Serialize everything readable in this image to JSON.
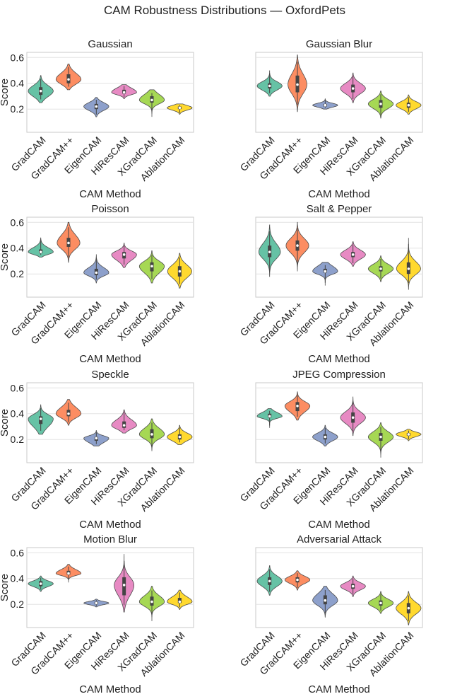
{
  "figure": {
    "title": "CAM Robustness Distributions — OxfordPets"
  },
  "palette": {
    "GradCAM": "#66c2a5",
    "GradCAM++": "#fc8d62",
    "EigenCAM": "#8da0cb",
    "HiResCAM": "#e78ac3",
    "XGradCAM": "#a6d854",
    "AblationCAM": "#ffd92f"
  },
  "chart_data": [
    {
      "type": "violin",
      "title": "Gaussian",
      "xlabel": "CAM Method",
      "ylabel": "Score",
      "categories": [
        "GradCAM",
        "GradCAM++",
        "EigenCAM",
        "HiResCAM",
        "XGradCAM",
        "AblationCAM"
      ],
      "yticks": [
        0.2,
        0.4,
        0.6
      ],
      "ylim": [
        0.02,
        0.64
      ],
      "grid": true,
      "violins": [
        {
          "median": 0.34,
          "q1": 0.31,
          "q3": 0.37,
          "min": 0.25,
          "max": 0.46,
          "spread": 0.042
        },
        {
          "median": 0.43,
          "q1": 0.4,
          "q3": 0.47,
          "min": 0.35,
          "max": 0.55,
          "spread": 0.042
        },
        {
          "median": 0.22,
          "q1": 0.2,
          "q3": 0.24,
          "min": 0.14,
          "max": 0.29,
          "spread": 0.03
        },
        {
          "median": 0.33,
          "q1": 0.32,
          "q3": 0.35,
          "min": 0.28,
          "max": 0.39,
          "spread": 0.024
        },
        {
          "median": 0.27,
          "q1": 0.25,
          "q3": 0.3,
          "min": 0.14,
          "max": 0.35,
          "spread": 0.035
        },
        {
          "median": 0.21,
          "q1": 0.2,
          "q3": 0.22,
          "min": 0.16,
          "max": 0.24,
          "spread": 0.018
        }
      ]
    },
    {
      "type": "violin",
      "title": "Gaussian Blur",
      "xlabel": "CAM Method",
      "ylabel": "",
      "categories": [
        "GradCAM",
        "GradCAM++",
        "EigenCAM",
        "HiResCAM",
        "XGradCAM",
        "AblationCAM"
      ],
      "yticks": [
        0.2,
        0.4,
        0.6
      ],
      "ylim": [
        0.02,
        0.64
      ],
      "grid": true,
      "violins": [
        {
          "median": 0.38,
          "q1": 0.36,
          "q3": 0.4,
          "min": 0.3,
          "max": 0.5,
          "spread": 0.032
        },
        {
          "median": 0.39,
          "q1": 0.33,
          "q3": 0.46,
          "min": 0.18,
          "max": 0.62,
          "spread": 0.075
        },
        {
          "median": 0.23,
          "q1": 0.22,
          "q3": 0.24,
          "min": 0.2,
          "max": 0.28,
          "spread": 0.015
        },
        {
          "median": 0.36,
          "q1": 0.33,
          "q3": 0.39,
          "min": 0.25,
          "max": 0.48,
          "spread": 0.04
        },
        {
          "median": 0.24,
          "q1": 0.21,
          "q3": 0.27,
          "min": 0.13,
          "max": 0.34,
          "spread": 0.035
        },
        {
          "median": 0.23,
          "q1": 0.21,
          "q3": 0.25,
          "min": 0.16,
          "max": 0.31,
          "spread": 0.028
        }
      ]
    },
    {
      "type": "violin",
      "title": "Poisson",
      "xlabel": "CAM Method",
      "ylabel": "Score",
      "categories": [
        "GradCAM",
        "GradCAM++",
        "EigenCAM",
        "HiResCAM",
        "XGradCAM",
        "AblationCAM"
      ],
      "yticks": [
        0.2,
        0.4,
        0.6
      ],
      "ylim": [
        0.02,
        0.64
      ],
      "grid": true,
      "violins": [
        {
          "median": 0.37,
          "q1": 0.36,
          "q3": 0.39,
          "min": 0.33,
          "max": 0.48,
          "spread": 0.025
        },
        {
          "median": 0.44,
          "q1": 0.41,
          "q3": 0.48,
          "min": 0.29,
          "max": 0.6,
          "spread": 0.055
        },
        {
          "median": 0.21,
          "q1": 0.19,
          "q3": 0.24,
          "min": 0.13,
          "max": 0.35,
          "spread": 0.032
        },
        {
          "median": 0.35,
          "q1": 0.32,
          "q3": 0.37,
          "min": 0.25,
          "max": 0.44,
          "spread": 0.035
        },
        {
          "median": 0.26,
          "q1": 0.22,
          "q3": 0.29,
          "min": 0.13,
          "max": 0.38,
          "spread": 0.045
        },
        {
          "median": 0.22,
          "q1": 0.18,
          "q3": 0.26,
          "min": 0.09,
          "max": 0.36,
          "spread": 0.05
        }
      ]
    },
    {
      "type": "violin",
      "title": "Salt & Pepper",
      "xlabel": "CAM Method",
      "ylabel": "",
      "categories": [
        "GradCAM",
        "GradCAM++",
        "EigenCAM",
        "HiResCAM",
        "XGradCAM",
        "AblationCAM"
      ],
      "yticks": [
        0.2,
        0.4,
        0.6
      ],
      "ylim": [
        0.02,
        0.64
      ],
      "grid": true,
      "violins": [
        {
          "median": 0.37,
          "q1": 0.33,
          "q3": 0.42,
          "min": 0.18,
          "max": 0.58,
          "spread": 0.06
        },
        {
          "median": 0.42,
          "q1": 0.38,
          "q3": 0.46,
          "min": 0.22,
          "max": 0.6,
          "spread": 0.055
        },
        {
          "median": 0.22,
          "q1": 0.21,
          "q3": 0.24,
          "min": 0.11,
          "max": 0.29,
          "spread": 0.03
        },
        {
          "median": 0.35,
          "q1": 0.33,
          "q3": 0.37,
          "min": 0.26,
          "max": 0.45,
          "spread": 0.035
        },
        {
          "median": 0.24,
          "q1": 0.22,
          "q3": 0.26,
          "min": 0.14,
          "max": 0.34,
          "spread": 0.035
        },
        {
          "median": 0.24,
          "q1": 0.2,
          "q3": 0.29,
          "min": 0.08,
          "max": 0.48,
          "spread": 0.05
        }
      ]
    },
    {
      "type": "violin",
      "title": "Speckle",
      "xlabel": "CAM Method",
      "ylabel": "Score",
      "categories": [
        "GradCAM",
        "GradCAM++",
        "EigenCAM",
        "HiResCAM",
        "XGradCAM",
        "AblationCAM"
      ],
      "yticks": [
        0.2,
        0.4,
        0.6
      ],
      "ylim": [
        0.02,
        0.64
      ],
      "grid": true,
      "violins": [
        {
          "median": 0.36,
          "q1": 0.32,
          "q3": 0.38,
          "min": 0.24,
          "max": 0.47,
          "spread": 0.045
        },
        {
          "median": 0.4,
          "q1": 0.38,
          "q3": 0.43,
          "min": 0.31,
          "max": 0.51,
          "spread": 0.04
        },
        {
          "median": 0.21,
          "q1": 0.19,
          "q3": 0.22,
          "min": 0.15,
          "max": 0.27,
          "spread": 0.025
        },
        {
          "median": 0.31,
          "q1": 0.29,
          "q3": 0.34,
          "min": 0.25,
          "max": 0.43,
          "spread": 0.035
        },
        {
          "median": 0.24,
          "q1": 0.21,
          "q3": 0.28,
          "min": 0.11,
          "max": 0.36,
          "spread": 0.04
        },
        {
          "median": 0.22,
          "q1": 0.2,
          "q3": 0.24,
          "min": 0.16,
          "max": 0.31,
          "spread": 0.03
        }
      ]
    },
    {
      "type": "violin",
      "title": "JPEG Compression",
      "xlabel": "CAM Method",
      "ylabel": "",
      "categories": [
        "GradCAM",
        "GradCAM++",
        "EigenCAM",
        "HiResCAM",
        "XGradCAM",
        "AblationCAM"
      ],
      "yticks": [
        0.2,
        0.4,
        0.6
      ],
      "ylim": [
        0.02,
        0.64
      ],
      "grid": true,
      "violins": [
        {
          "median": 0.38,
          "q1": 0.37,
          "q3": 0.4,
          "min": 0.29,
          "max": 0.44,
          "spread": 0.022
        },
        {
          "median": 0.46,
          "q1": 0.42,
          "q3": 0.49,
          "min": 0.35,
          "max": 0.57,
          "spread": 0.04
        },
        {
          "median": 0.22,
          "q1": 0.2,
          "q3": 0.24,
          "min": 0.15,
          "max": 0.31,
          "spread": 0.03
        },
        {
          "median": 0.37,
          "q1": 0.33,
          "q3": 0.41,
          "min": 0.23,
          "max": 0.53,
          "spread": 0.045
        },
        {
          "median": 0.22,
          "q1": 0.19,
          "q3": 0.25,
          "min": 0.06,
          "max": 0.33,
          "spread": 0.04
        },
        {
          "median": 0.24,
          "q1": 0.23,
          "q3": 0.25,
          "min": 0.19,
          "max": 0.28,
          "spread": 0.018
        }
      ]
    },
    {
      "type": "violin",
      "title": "Motion Blur",
      "xlabel": "CAM Method",
      "ylabel": "Score",
      "categories": [
        "GradCAM",
        "GradCAM++",
        "EigenCAM",
        "HiResCAM",
        "XGradCAM",
        "AblationCAM"
      ],
      "yticks": [
        0.2,
        0.4,
        0.6
      ],
      "ylim": [
        0.02,
        0.64
      ],
      "grid": true,
      "violins": [
        {
          "median": 0.36,
          "q1": 0.34,
          "q3": 0.38,
          "min": 0.3,
          "max": 0.42,
          "spread": 0.022
        },
        {
          "median": 0.44,
          "q1": 0.43,
          "q3": 0.46,
          "min": 0.37,
          "max": 0.51,
          "spread": 0.022
        },
        {
          "median": 0.21,
          "q1": 0.2,
          "q3": 0.22,
          "min": 0.18,
          "max": 0.24,
          "spread": 0.012
        },
        {
          "median": 0.35,
          "q1": 0.27,
          "q3": 0.41,
          "min": 0.14,
          "max": 0.59,
          "spread": 0.07
        },
        {
          "median": 0.22,
          "q1": 0.19,
          "q3": 0.26,
          "min": 0.07,
          "max": 0.34,
          "spread": 0.04
        },
        {
          "median": 0.22,
          "q1": 0.21,
          "q3": 0.25,
          "min": 0.16,
          "max": 0.31,
          "spread": 0.028
        }
      ]
    },
    {
      "type": "violin",
      "title": "Adversarial Attack",
      "xlabel": "CAM Method",
      "ylabel": "",
      "categories": [
        "GradCAM",
        "GradCAM++",
        "EigenCAM",
        "HiResCAM",
        "XGradCAM",
        "AblationCAM"
      ],
      "yticks": [
        0.2,
        0.4,
        0.6
      ],
      "ylim": [
        0.02,
        0.64
      ],
      "grid": true,
      "violins": [
        {
          "median": 0.38,
          "q1": 0.35,
          "q3": 0.41,
          "min": 0.27,
          "max": 0.5,
          "spread": 0.04
        },
        {
          "median": 0.39,
          "q1": 0.37,
          "q3": 0.41,
          "min": 0.31,
          "max": 0.46,
          "spread": 0.028
        },
        {
          "median": 0.23,
          "q1": 0.2,
          "q3": 0.27,
          "min": 0.1,
          "max": 0.34,
          "spread": 0.045
        },
        {
          "median": 0.34,
          "q1": 0.32,
          "q3": 0.36,
          "min": 0.26,
          "max": 0.42,
          "spread": 0.028
        },
        {
          "median": 0.21,
          "q1": 0.19,
          "q3": 0.23,
          "min": 0.13,
          "max": 0.3,
          "spread": 0.03
        },
        {
          "median": 0.17,
          "q1": 0.13,
          "q3": 0.21,
          "min": 0.04,
          "max": 0.3,
          "spread": 0.045
        }
      ]
    }
  ]
}
